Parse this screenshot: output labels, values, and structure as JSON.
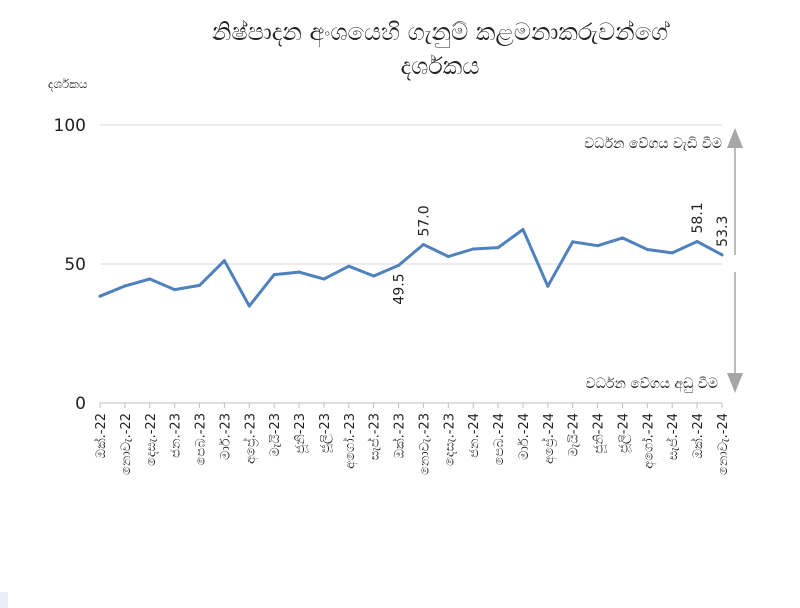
{
  "chart_data": {
    "type": "line",
    "title_lines": [
      "නිෂ්පාදන අංශයෙහි ගැනුම් කළමනාකරුවන්ගේ",
      "දර්ශකය"
    ],
    "ylabel": "දර්ශකය",
    "xlabel": "",
    "ylim": [
      0,
      100
    ],
    "yticks": [
      0,
      50,
      100
    ],
    "grid": true,
    "categories": [
      "ඔක්.-22",
      "නොවැ.-22",
      "දෙසැ.-22",
      "ජන.-23",
      "පෙබ.-23",
      "මාර්.-23",
      "අප්‍රේ.-23",
      "මැයි-23",
      "ජූනි-23",
      "ජූලි-23",
      "අගෝ.-23",
      "සැප්.-23",
      "ඔක්.-23",
      "නොවැ.-23",
      "දෙසැ.-23",
      "ජන.-24",
      "පෙබ.-24",
      "මාර්.-24",
      "අප්‍රේ.-24",
      "මැයි-24",
      "ජූනි-24",
      "ජූලි-24",
      "අගෝ.-24",
      "සැප්.-24",
      "ඔක්.-24",
      "නොවැ.-24"
    ],
    "series": [
      {
        "name": "දර්ශකය",
        "color": "#4f81bd",
        "values": [
          38.4,
          42.1,
          44.6,
          40.8,
          42.3,
          51.2,
          34.9,
          46.2,
          47.1,
          44.6,
          49.2,
          45.7,
          49.5,
          57.0,
          52.7,
          55.4,
          55.9,
          62.4,
          42.0,
          58.0,
          56.6,
          59.4,
          55.2,
          54.0,
          58.1,
          53.3
        ]
      }
    ],
    "data_labels": [
      {
        "index": 12,
        "text": "49.5",
        "position": "below"
      },
      {
        "index": 13,
        "text": "57.0",
        "position": "above"
      },
      {
        "index": 24,
        "text": "58.1",
        "position": "above"
      },
      {
        "index": 25,
        "text": "53.3",
        "position": "above"
      }
    ],
    "annotations": {
      "up_text": "වර්ධන වේගය වැඩි වීම",
      "down_text": "වර්ධන වේගය අඩු වීම",
      "arrow_color": "#a6a6a6"
    },
    "colors": {
      "axis": "#bfbfbf",
      "grid": "#d9d9d9",
      "text": "#222222"
    }
  }
}
